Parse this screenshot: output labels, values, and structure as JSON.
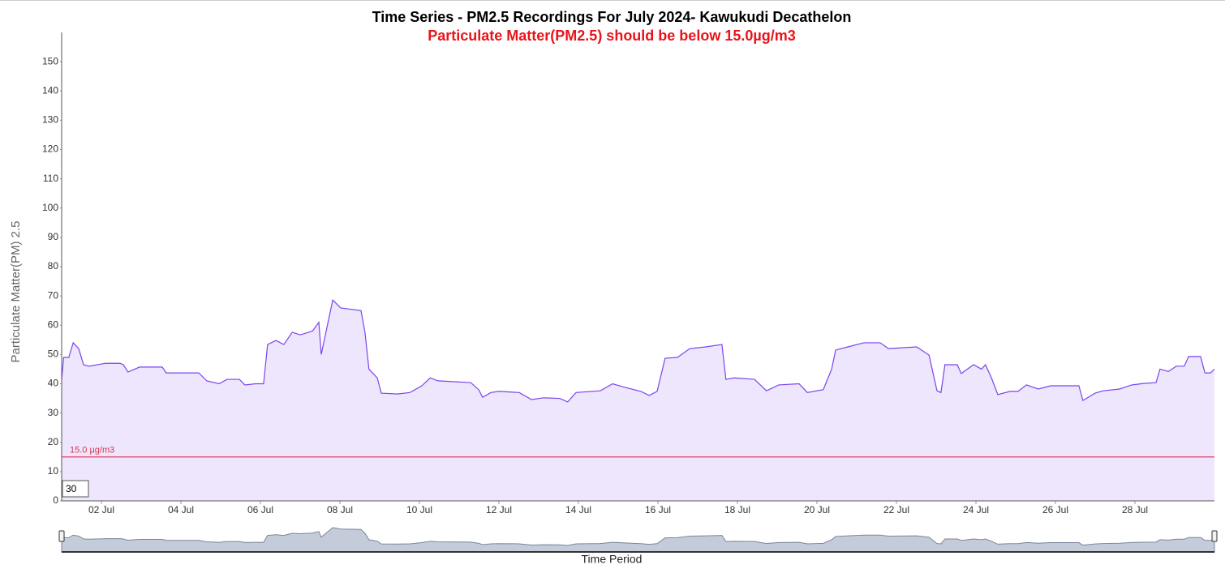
{
  "chart_data": {
    "type": "area",
    "title": "Time Series - PM2.5 Recordings For July 2024- Kawukudi Decathelon",
    "subtitle": "Particulate Matter(PM2.5) should be below 15.0µg/m3",
    "y_label": "Particulate Matter(PM) 2.5",
    "x_label": "Time Period",
    "threshold": 15,
    "threshold_label": "15.0 µg/m3",
    "threshold_color": "#e0304e",
    "zoom_input": "30",
    "xlim": [
      1,
      30
    ],
    "xticks": [
      {
        "value": 2,
        "label": "02 Jul"
      },
      {
        "value": 4,
        "label": "04 Jul"
      },
      {
        "value": 6,
        "label": "06 Jul"
      },
      {
        "value": 8,
        "label": "08 Jul"
      },
      {
        "value": 10,
        "label": "10 Jul"
      },
      {
        "value": 12,
        "label": "12 Jul"
      },
      {
        "value": 14,
        "label": "14 Jul"
      },
      {
        "value": 16,
        "label": "16 Jul"
      },
      {
        "value": 18,
        "label": "18 Jul"
      },
      {
        "value": 20,
        "label": "20 Jul"
      },
      {
        "value": 22,
        "label": "22 Jul"
      },
      {
        "value": 24,
        "label": "24 Jul"
      },
      {
        "value": 26,
        "label": "26 Jul"
      },
      {
        "value": 28,
        "label": "28 Jul"
      }
    ],
    "ylim": [
      0,
      160
    ],
    "yticks": [
      0,
      10,
      20,
      30,
      40,
      50,
      60,
      70,
      80,
      90,
      100,
      110,
      120,
      130,
      140,
      150
    ],
    "x": [
      1.0,
      1.05,
      1.18,
      1.29,
      1.43,
      1.55,
      1.69,
      2.1,
      2.47,
      2.55,
      2.67,
      2.96,
      3.53,
      3.63,
      4.45,
      4.65,
      4.96,
      5.16,
      5.47,
      5.61,
      5.88,
      6.08,
      6.18,
      6.39,
      6.59,
      6.8,
      7.0,
      7.31,
      7.47,
      7.53,
      7.69,
      7.82,
      8.02,
      8.53,
      8.63,
      8.73,
      8.94,
      9.04,
      9.45,
      9.76,
      10.06,
      10.27,
      10.47,
      11.29,
      11.49,
      11.59,
      11.8,
      12.0,
      12.51,
      12.82,
      13.12,
      13.53,
      13.73,
      13.94,
      14.55,
      14.86,
      15.16,
      15.57,
      15.78,
      15.98,
      16.18,
      16.49,
      16.8,
      17.2,
      17.61,
      17.71,
      17.92,
      18.43,
      18.73,
      19.04,
      19.55,
      19.76,
      20.16,
      20.37,
      20.47,
      20.78,
      21.18,
      21.59,
      21.8,
      22.51,
      22.82,
      23.02,
      23.12,
      23.22,
      23.53,
      23.63,
      23.94,
      24.14,
      24.24,
      24.39,
      24.55,
      24.86,
      25.06,
      25.27,
      25.57,
      25.88,
      26.18,
      26.59,
      26.69,
      27.0,
      27.2,
      27.61,
      27.92,
      28.22,
      28.53,
      28.63,
      28.84,
      29.04,
      29.24,
      29.35,
      29.65,
      29.76,
      29.9,
      30.0
    ],
    "series": [
      {
        "name": "PM2.5",
        "color": "#7b44ee",
        "fill": "#eee6fc",
        "values": [
          41.5,
          49,
          49,
          54,
          52,
          46.5,
          46,
          47,
          47,
          46.5,
          44,
          45.7,
          45.7,
          43.7,
          43.7,
          41,
          40,
          41.5,
          41.5,
          39.6,
          40,
          40,
          53.4,
          54.8,
          53.4,
          57.6,
          56.7,
          58,
          61,
          50,
          60.3,
          68.6,
          65.9,
          65,
          57.6,
          45,
          42,
          36.8,
          36.5,
          37,
          39.3,
          42,
          41,
          40.4,
          38,
          35.4,
          37,
          37.4,
          37,
          34.6,
          35.2,
          35,
          33.8,
          37,
          37.6,
          40,
          38.8,
          37.4,
          36,
          37.4,
          48.7,
          49,
          52,
          52.6,
          53.4,
          41.5,
          42,
          41.5,
          37.6,
          39.6,
          40,
          37,
          38,
          45,
          51.5,
          52.6,
          54,
          54,
          52,
          52.6,
          49.8,
          37.6,
          37,
          46.5,
          46.5,
          43.5,
          46.5,
          45,
          46.5,
          42,
          36.3,
          37.4,
          37.4,
          39.6,
          38.2,
          39.3,
          39.3,
          39.3,
          34.3,
          36.8,
          37.6,
          38.2,
          39.6,
          40.1,
          40.4,
          45,
          44.2,
          46,
          46,
          49.3,
          49.3,
          43.7,
          43.7,
          45
        ]
      }
    ]
  }
}
